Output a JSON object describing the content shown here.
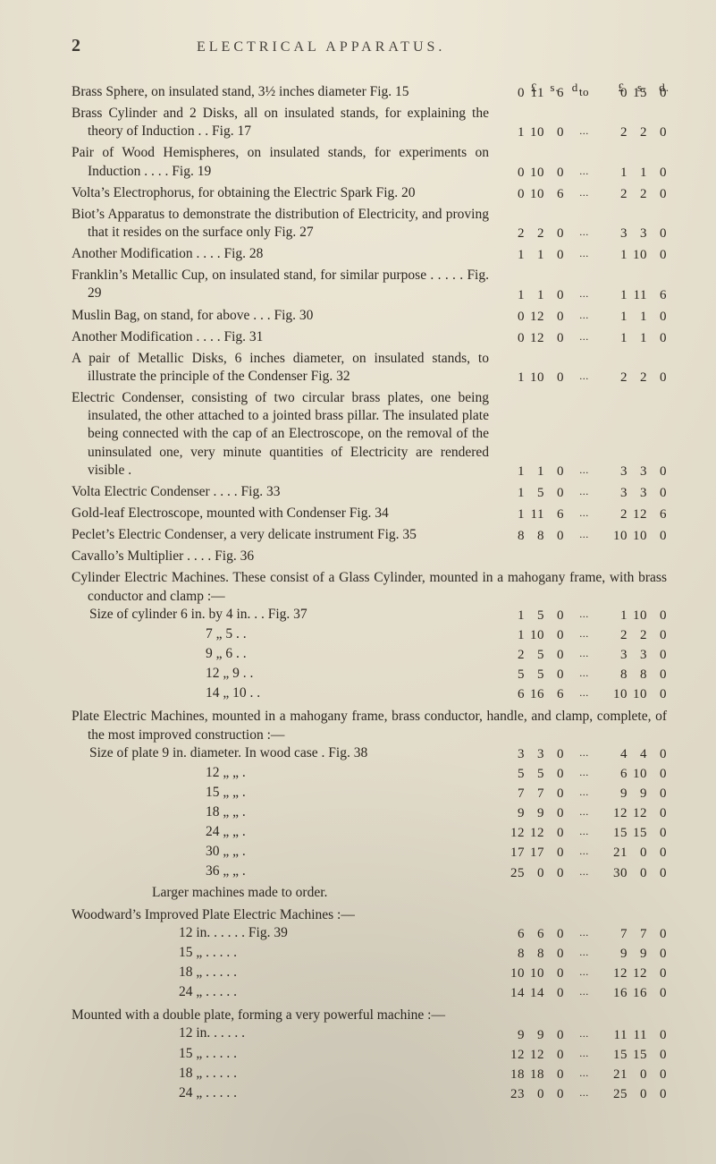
{
  "page_number": "2",
  "running_title": "ELECTRICAL APPARATUS.",
  "price_headers": {
    "left": [
      "£",
      "s.",
      "d."
    ],
    "right": [
      "£",
      "s.",
      "d."
    ]
  },
  "connector_to": "to",
  "connector_dots": "...",
  "entries": [
    {
      "desc": "Brass Sphere, on insulated stand, 3½ inches diameter  Fig. 15",
      "p1": [
        "0",
        "11",
        "6"
      ],
      "conn": "to",
      "p2": [
        "0",
        "15",
        "0"
      ]
    },
    {
      "desc": "Brass Cylinder and 2 Disks, all on insulated stands, for explaining the theory of Induction . . Fig. 17",
      "p1": [
        "1",
        "10",
        "0"
      ],
      "conn": "...",
      "p2": [
        "2",
        "2",
        "0"
      ]
    },
    {
      "desc": "Pair of Wood Hemispheres, on insulated stands, for experiments on Induction . . . . Fig. 19",
      "p1": [
        "0",
        "10",
        "0"
      ],
      "conn": "...",
      "p2": [
        "1",
        "1",
        "0"
      ]
    },
    {
      "desc": "Volta’s Electrophorus, for obtaining the Electric Spark Fig. 20",
      "p1": [
        "0",
        "10",
        "6"
      ],
      "conn": "...",
      "p2": [
        "2",
        "2",
        "0"
      ]
    },
    {
      "desc": "Biot’s Apparatus to demonstrate the distribution of Electricity, and proving that it resides on the surface only Fig. 27",
      "p1": [
        "2",
        "2",
        "0"
      ],
      "conn": "...",
      "p2": [
        "3",
        "3",
        "0"
      ]
    },
    {
      "desc": "Another Modification . . . . Fig. 28",
      "p1": [
        "1",
        "1",
        "0"
      ],
      "conn": "...",
      "p2": [
        "1",
        "10",
        "0"
      ]
    },
    {
      "desc": "Franklin’s Metallic Cup, on insulated stand, for similar purpose . . . . . Fig. 29",
      "p1": [
        "1",
        "1",
        "0"
      ],
      "conn": "...",
      "p2": [
        "1",
        "11",
        "6"
      ]
    },
    {
      "desc": "Muslin Bag, on stand, for above . . . Fig. 30",
      "p1": [
        "0",
        "12",
        "0"
      ],
      "conn": "...",
      "p2": [
        "1",
        "1",
        "0"
      ]
    },
    {
      "desc": "Another Modification . . . . Fig. 31",
      "p1": [
        "0",
        "12",
        "0"
      ],
      "conn": "...",
      "p2": [
        "1",
        "1",
        "0"
      ]
    },
    {
      "desc": "A pair of Metallic Disks, 6 inches diameter, on insulated stands, to illustrate the principle of the Condenser Fig. 32",
      "p1": [
        "1",
        "10",
        "0"
      ],
      "conn": "...",
      "p2": [
        "2",
        "2",
        "0"
      ]
    },
    {
      "desc": "Electric Condenser, consisting of two circular brass plates, one being insulated, the other attached to a jointed brass pillar. The insulated plate being connected with the cap of an Electroscope, on the removal of the uninsulated one, very minute quantities of Electricity are rendered visible .",
      "p1": [
        "1",
        "1",
        "0"
      ],
      "conn": "...",
      "p2": [
        "3",
        "3",
        "0"
      ]
    },
    {
      "desc": "Volta Electric Condenser . . . . Fig. 33",
      "p1": [
        "1",
        "5",
        "0"
      ],
      "conn": "...",
      "p2": [
        "3",
        "3",
        "0"
      ]
    },
    {
      "desc": "Gold-leaf Electroscope, mounted with Condenser Fig. 34",
      "p1": [
        "1",
        "11",
        "6"
      ],
      "conn": "...",
      "p2": [
        "2",
        "12",
        "6"
      ]
    },
    {
      "desc": "Peclet’s Electric Condenser, a very delicate instrument Fig. 35",
      "p1": [
        "8",
        "8",
        "0"
      ],
      "conn": "...",
      "p2": [
        "10",
        "10",
        "0"
      ]
    },
    {
      "desc": "Cavallo’s Multiplier . . . . Fig. 36",
      "p1": null,
      "p2": null
    }
  ],
  "cylinder_block": {
    "intro": "Cylinder Electric Machines. These consist of a Glass Cylinder, mounted in a mahogany frame, with brass conductor and clamp :—",
    "rows": [
      {
        "label": "Size of cylinder 6 in. by 4 in. . . Fig. 37",
        "p1": [
          "1",
          "5",
          "0"
        ],
        "p2": [
          "1",
          "10",
          "0"
        ]
      },
      {
        "label": "7  „  5 . .",
        "p1": [
          "1",
          "10",
          "0"
        ],
        "p2": [
          "2",
          "2",
          "0"
        ]
      },
      {
        "label": "9  „  6 . .",
        "p1": [
          "2",
          "5",
          "0"
        ],
        "p2": [
          "3",
          "3",
          "0"
        ]
      },
      {
        "label": "12 „  9 . .",
        "p1": [
          "5",
          "5",
          "0"
        ],
        "p2": [
          "8",
          "8",
          "0"
        ]
      },
      {
        "label": "14 „ 10 . .",
        "p1": [
          "6",
          "16",
          "6"
        ],
        "p2": [
          "10",
          "10",
          "0"
        ]
      }
    ]
  },
  "plate_block": {
    "intro": "Plate Electric Machines, mounted in a mahogany frame, brass conductor, handle, and clamp, complete, of the most improved construction :—",
    "lead": "Size of plate 9 in. diameter. In wood case . Fig. 38",
    "lead_price": {
      "p1": [
        "3",
        "3",
        "0"
      ],
      "p2": [
        "4",
        "4",
        "0"
      ]
    },
    "rows": [
      {
        "label": "12 „ „ .",
        "p1": [
          "5",
          "5",
          "0"
        ],
        "p2": [
          "6",
          "10",
          "0"
        ]
      },
      {
        "label": "15 „ „ .",
        "p1": [
          "7",
          "7",
          "0"
        ],
        "p2": [
          "9",
          "9",
          "0"
        ]
      },
      {
        "label": "18 „ „ .",
        "p1": [
          "9",
          "9",
          "0"
        ],
        "p2": [
          "12",
          "12",
          "0"
        ]
      },
      {
        "label": "24 „ „ .",
        "p1": [
          "12",
          "12",
          "0"
        ],
        "p2": [
          "15",
          "15",
          "0"
        ]
      },
      {
        "label": "30 „ „ .",
        "p1": [
          "17",
          "17",
          "0"
        ],
        "p2": [
          "21",
          "0",
          "0"
        ]
      },
      {
        "label": "36 „ „ .",
        "p1": [
          "25",
          "0",
          "0"
        ],
        "p2": [
          "30",
          "0",
          "0"
        ]
      }
    ],
    "tail": "Larger machines made to order."
  },
  "woodward_block": {
    "title": "Woodward’s Improved Plate Electric Machines :—",
    "rows": [
      {
        "label": "12 in. . . . . . Fig. 39",
        "p1": [
          "6",
          "6",
          "0"
        ],
        "p2": [
          "7",
          "7",
          "0"
        ]
      },
      {
        "label": "15 „ . . . . .",
        "p1": [
          "8",
          "8",
          "0"
        ],
        "p2": [
          "9",
          "9",
          "0"
        ]
      },
      {
        "label": "18 „ . . . . .",
        "p1": [
          "10",
          "10",
          "0"
        ],
        "p2": [
          "12",
          "12",
          "0"
        ]
      },
      {
        "label": "24 „ . . . . .",
        "p1": [
          "14",
          "14",
          "0"
        ],
        "p2": [
          "16",
          "16",
          "0"
        ]
      }
    ]
  },
  "mounted_block": {
    "title": "Mounted with a double plate, forming a very powerful machine :—",
    "rows": [
      {
        "label": "12 in. . . . . .",
        "p1": [
          "9",
          "9",
          "0"
        ],
        "p2": [
          "11",
          "11",
          "0"
        ]
      },
      {
        "label": "15 „ . . . . .",
        "p1": [
          "12",
          "12",
          "0"
        ],
        "p2": [
          "15",
          "15",
          "0"
        ]
      },
      {
        "label": "18 „ . . . . .",
        "p1": [
          "18",
          "18",
          "0"
        ],
        "p2": [
          "21",
          "0",
          "0"
        ]
      },
      {
        "label": "24 „ . . . . .",
        "p1": [
          "23",
          "0",
          "0"
        ],
        "p2": [
          "25",
          "0",
          "0"
        ]
      }
    ]
  },
  "colors": {
    "paper": "#ece5d2",
    "ink": "#2c2720"
  }
}
